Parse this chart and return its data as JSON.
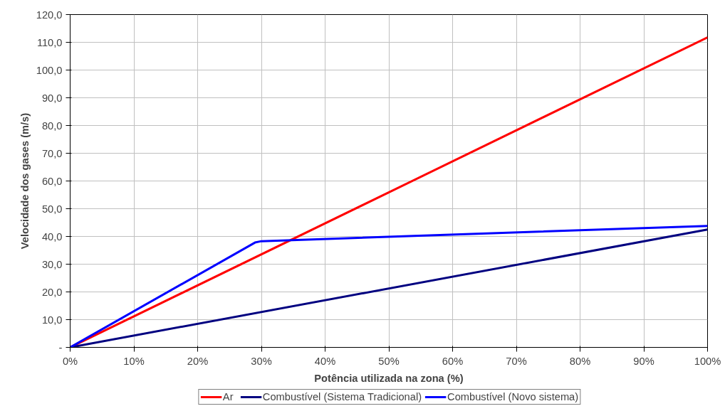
{
  "chart_data": {
    "type": "line",
    "xlabel": "Potência utilizada na zona (%)",
    "ylabel": "Velocidade dos gases (m/s)",
    "xlim": [
      0,
      100
    ],
    "ylim": [
      0,
      120
    ],
    "xticks": [
      {
        "value": 0,
        "label": "0%"
      },
      {
        "value": 10,
        "label": "10%"
      },
      {
        "value": 20,
        "label": "20%"
      },
      {
        "value": 30,
        "label": "30%"
      },
      {
        "value": 40,
        "label": "40%"
      },
      {
        "value": 50,
        "label": "50%"
      },
      {
        "value": 60,
        "label": "60%"
      },
      {
        "value": 70,
        "label": "70%"
      },
      {
        "value": 80,
        "label": "80%"
      },
      {
        "value": 90,
        "label": "90%"
      },
      {
        "value": 100,
        "label": "100%"
      }
    ],
    "yticks": [
      {
        "value": 0,
        "label": "-"
      },
      {
        "value": 10,
        "label": "10,0"
      },
      {
        "value": 20,
        "label": "20,0"
      },
      {
        "value": 30,
        "label": "30,0"
      },
      {
        "value": 40,
        "label": "40,0"
      },
      {
        "value": 50,
        "label": "50,0"
      },
      {
        "value": 60,
        "label": "60,0"
      },
      {
        "value": 70,
        "label": "70,0"
      },
      {
        "value": 80,
        "label": "80,0"
      },
      {
        "value": 90,
        "label": "90,0"
      },
      {
        "value": 100,
        "label": "100,0"
      },
      {
        "value": 110,
        "label": "110,0"
      },
      {
        "value": 120,
        "label": "120,0"
      }
    ],
    "grid": true,
    "legend": "bottom",
    "series": [
      {
        "name": "Ar",
        "color": "#ff0000",
        "x": [
          0,
          100
        ],
        "values": [
          0,
          111.8
        ]
      },
      {
        "name": "Combustível (Sistema Tradicional)",
        "color": "#000080",
        "x": [
          0,
          100
        ],
        "values": [
          0,
          42.5
        ]
      },
      {
        "name": "Combustível (Novo sistema)",
        "color": "#0000ff",
        "x": [
          0,
          29,
          30,
          100
        ],
        "values": [
          0,
          37.8,
          38.3,
          43.8
        ]
      }
    ]
  }
}
